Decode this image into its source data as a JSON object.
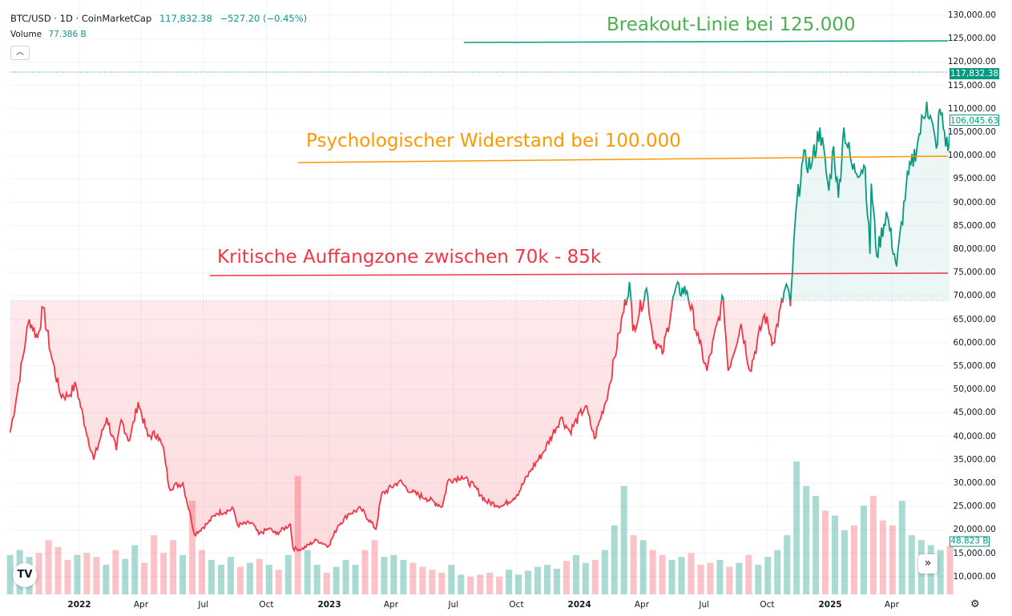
{
  "header": {
    "symbol": "BTC/USD · 1D · CoinMarketCap",
    "last_price": "117,832.38",
    "change": "−527.20 (−0.45%)",
    "volume_label": "Volume",
    "volume_value": "77.386 B",
    "collapse_icon": "chevron-up-icon"
  },
  "price_labels": {
    "current": "117,832.38",
    "last_close": "106,045.63",
    "volume_last": "48.823 B"
  },
  "annotations": {
    "breakout": {
      "text": "Breakout-Linie bei 125.000",
      "color": "#4caf50",
      "line_color": "#089981"
    },
    "resistance": {
      "text": "Psychologischer Widerstand bei 100.000",
      "color": "#ff9800",
      "line_color": "#ff9800"
    },
    "support": {
      "text": "Kritische Auffangzone zwischen 70k - 85k",
      "color": "#f23645",
      "line_color": "#f23645"
    }
  },
  "colors": {
    "up": "#089981",
    "down": "#f23645"
  },
  "controls": {
    "logo": "TV",
    "scroll_icon": "»",
    "settings_icon": "⚙"
  },
  "chart_data": {
    "type": "area",
    "style": "baseline",
    "baseline": 69000,
    "ylim": [
      7500,
      132000
    ],
    "y_ticks": [
      "130,000.00",
      "125,000.00",
      "120,000.00",
      "115,000.00",
      "110,000.00",
      "105,000.00",
      "100,000.00",
      "95,000.00",
      "90,000.00",
      "85,000.00",
      "80,000.00",
      "75,000.00",
      "70,000.00",
      "65,000.00",
      "60,000.00",
      "55,000.00",
      "50,000.00",
      "45,000.00",
      "40,000.00",
      "35,000.00",
      "30,000.00",
      "25,000.00",
      "20,000.00",
      "15,000.00",
      "10,000.00"
    ],
    "x_ticks": [
      {
        "label": "2022",
        "date": "2022-01-01"
      },
      {
        "label": "Apr",
        "date": "2022-04-01"
      },
      {
        "label": "Jul",
        "date": "2022-07-01"
      },
      {
        "label": "Oct",
        "date": "2022-10-01"
      },
      {
        "label": "2023",
        "date": "2023-01-01"
      },
      {
        "label": "Apr",
        "date": "2023-04-01"
      },
      {
        "label": "Jul",
        "date": "2023-07-01"
      },
      {
        "label": "Oct",
        "date": "2023-10-01"
      },
      {
        "label": "2024",
        "date": "2024-01-01"
      },
      {
        "label": "Apr",
        "date": "2024-04-01"
      },
      {
        "label": "Jul",
        "date": "2024-07-01"
      },
      {
        "label": "Oct",
        "date": "2024-10-01"
      },
      {
        "label": "2025",
        "date": "2025-01-01"
      },
      {
        "label": "Apr",
        "date": "2025-04-01"
      }
    ],
    "grid": true,
    "current_price": 117832.38,
    "levels": {
      "breakout": 125000,
      "resistance": 100000,
      "support": 75000
    },
    "price": [
      [
        "2021-09-22",
        40800
      ],
      [
        "2021-10-01",
        48000
      ],
      [
        "2021-10-15",
        61000
      ],
      [
        "2021-10-20",
        65000
      ],
      [
        "2021-11-01",
        61000
      ],
      [
        "2021-11-09",
        67500
      ],
      [
        "2021-11-20",
        58000
      ],
      [
        "2021-12-04",
        49000
      ],
      [
        "2021-12-15",
        48500
      ],
      [
        "2021-12-27",
        51000
      ],
      [
        "2022-01-10",
        41800
      ],
      [
        "2022-01-22",
        35000
      ],
      [
        "2022-02-10",
        44000
      ],
      [
        "2022-02-24",
        37000
      ],
      [
        "2022-03-03",
        43500
      ],
      [
        "2022-03-15",
        39000
      ],
      [
        "2022-03-28",
        47300
      ],
      [
        "2022-04-11",
        40000
      ],
      [
        "2022-04-25",
        40500
      ],
      [
        "2022-05-05",
        36500
      ],
      [
        "2022-05-12",
        29000
      ],
      [
        "2022-06-01",
        30000
      ],
      [
        "2022-06-13",
        22500
      ],
      [
        "2022-06-18",
        19000
      ],
      [
        "2022-07-08",
        21500
      ],
      [
        "2022-07-20",
        23500
      ],
      [
        "2022-08-14",
        24400
      ],
      [
        "2022-08-20",
        21000
      ],
      [
        "2022-09-10",
        21500
      ],
      [
        "2022-09-20",
        19000
      ],
      [
        "2022-10-05",
        20300
      ],
      [
        "2022-10-15",
        19100
      ],
      [
        "2022-11-05",
        21200
      ],
      [
        "2022-11-09",
        16000
      ],
      [
        "2022-11-21",
        15800
      ],
      [
        "2022-12-13",
        17800
      ],
      [
        "2022-12-31",
        16550
      ],
      [
        "2023-01-14",
        21000
      ],
      [
        "2023-01-30",
        23500
      ],
      [
        "2023-02-16",
        24500
      ],
      [
        "2023-03-10",
        20100
      ],
      [
        "2023-03-18",
        27500
      ],
      [
        "2023-04-13",
        30400
      ],
      [
        "2023-05-01",
        28000
      ],
      [
        "2023-05-22",
        26800
      ],
      [
        "2023-06-15",
        25000
      ],
      [
        "2023-06-23",
        30500
      ],
      [
        "2023-07-13",
        31400
      ],
      [
        "2023-08-01",
        29200
      ],
      [
        "2023-08-18",
        26000
      ],
      [
        "2023-09-11",
        25100
      ],
      [
        "2023-10-02",
        27500
      ],
      [
        "2023-10-23",
        33000
      ],
      [
        "2023-11-09",
        36500
      ],
      [
        "2023-12-05",
        44000
      ],
      [
        "2023-12-18",
        41000
      ],
      [
        "2024-01-10",
        46500
      ],
      [
        "2024-01-23",
        39500
      ],
      [
        "2024-02-12",
        49500
      ],
      [
        "2024-02-28",
        62000
      ],
      [
        "2024-03-14",
        73000
      ],
      [
        "2024-03-19",
        62500
      ],
      [
        "2024-04-08",
        71600
      ],
      [
        "2024-04-17",
        61500
      ],
      [
        "2024-05-01",
        57500
      ],
      [
        "2024-05-20",
        71400
      ],
      [
        "2024-06-06",
        71000
      ],
      [
        "2024-06-24",
        60000
      ],
      [
        "2024-07-05",
        54000
      ],
      [
        "2024-07-29",
        69500
      ],
      [
        "2024-08-05",
        54000
      ],
      [
        "2024-08-24",
        64000
      ],
      [
        "2024-09-06",
        54000
      ],
      [
        "2024-09-27",
        66000
      ],
      [
        "2024-10-10",
        60000
      ],
      [
        "2024-10-29",
        72500
      ],
      [
        "2024-11-04",
        67800
      ],
      [
        "2024-11-12",
        88000
      ],
      [
        "2024-11-22",
        99000
      ],
      [
        "2024-12-05",
        98000
      ],
      [
        "2024-12-17",
        106000
      ],
      [
        "2024-12-30",
        92500
      ],
      [
        "2025-01-06",
        102000
      ],
      [
        "2025-01-13",
        91000
      ],
      [
        "2025-01-21",
        106000
      ],
      [
        "2025-02-03",
        97000
      ],
      [
        "2025-02-21",
        97500
      ],
      [
        "2025-02-28",
        79000
      ],
      [
        "2025-03-02",
        94000
      ],
      [
        "2025-03-10",
        78500
      ],
      [
        "2025-03-24",
        88000
      ],
      [
        "2025-04-08",
        76300
      ],
      [
        "2025-04-22",
        93500
      ],
      [
        "2025-05-09",
        103000
      ],
      [
        "2025-05-22",
        111500
      ],
      [
        "2025-06-05",
        101500
      ],
      [
        "2025-06-10",
        110000
      ],
      [
        "2025-06-22",
        101000
      ],
      [
        "2025-06-25",
        106045.63
      ]
    ],
    "volume_unit": "B",
    "volume_start": "2021-09-22",
    "volume_step_days": 14,
    "volume": [
      40,
      45,
      38,
      42,
      55,
      48,
      35,
      40,
      42,
      38,
      30,
      45,
      36,
      50,
      32,
      60,
      42,
      55,
      40,
      95,
      45,
      35,
      30,
      38,
      28,
      32,
      36,
      30,
      25,
      40,
      120,
      45,
      30,
      22,
      28,
      35,
      30,
      45,
      55,
      38,
      40,
      35,
      32,
      28,
      25,
      22,
      30,
      20,
      18,
      20,
      22,
      18,
      25,
      20,
      24,
      28,
      30,
      26,
      34,
      40,
      32,
      35,
      45,
      70,
      110,
      60,
      55,
      45,
      40,
      35,
      38,
      42,
      30,
      32,
      35,
      28,
      32,
      40,
      30,
      38,
      45,
      60,
      135,
      110,
      100,
      85,
      80,
      65,
      70,
      90,
      100,
      75,
      70,
      95,
      60,
      55,
      50,
      45,
      49
    ]
  }
}
